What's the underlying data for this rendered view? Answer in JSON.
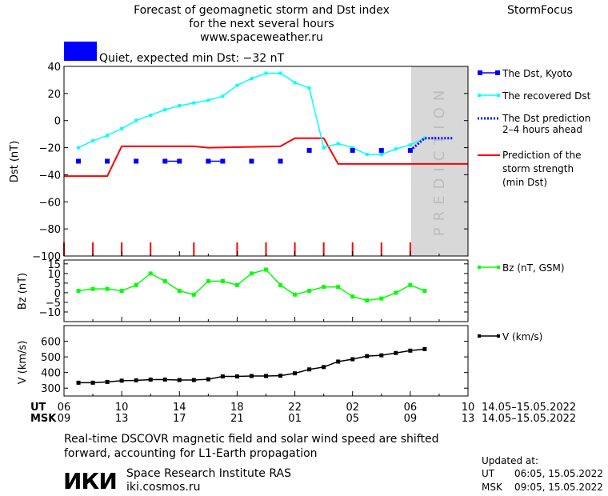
{
  "header": {
    "title_lines": [
      "Forecast of geomagnetic storm and Dst index",
      "for the next several hours",
      "www.spaceweather.ru"
    ],
    "brand": "StormFocus",
    "status_text": "Quiet, expected min Dst: −32 nT",
    "status_color": "#0000ff"
  },
  "colors": {
    "kyoto": "#0000ff",
    "recovered": "#00ffff",
    "prediction_dots": "#0000ff",
    "storm_strength": "#ff0000",
    "bz": "#00ff00",
    "v": "#000000",
    "prediction_zone": "#d8d8d8"
  },
  "legend": {
    "kyoto": "The Dst, Kyoto",
    "recovered": "The recovered Dst",
    "dst_prediction": [
      "The Dst prediction",
      "2–4 hours ahead"
    ],
    "storm_strength": [
      "Prediction of the",
      "storm strength",
      "(min Dst)"
    ],
    "bz": "Bz (nT, GSM)",
    "v": "V (km/s)"
  },
  "prediction_label": "PREDICTION",
  "time_axis": {
    "ut_label": "UT",
    "msk_label": "MSK",
    "ut_ticks": [
      "06",
      "10",
      "14",
      "18",
      "22",
      "02",
      "06",
      "10"
    ],
    "msk_ticks": [
      "09",
      "13",
      "17",
      "21",
      "01",
      "05",
      "09",
      "13"
    ],
    "ut_range": "14.05–15.05.2022",
    "msk_range": "14.05–15.05.2022"
  },
  "chart_data": [
    {
      "type": "line",
      "ylabel": "Dst (nT)",
      "ylim": [
        -100,
        40
      ],
      "yticks": [
        40,
        20,
        0,
        -20,
        -40,
        -60,
        -80,
        -100
      ],
      "xlim": [
        6,
        34
      ],
      "prediction_start": 30,
      "series": [
        {
          "name": "The Dst, Kyoto",
          "style": "square-markers",
          "x": [
            7,
            9,
            11,
            13,
            14,
            16,
            17,
            19,
            21,
            23,
            26,
            28,
            30
          ],
          "y": [
            -30,
            -30,
            -30,
            -30,
            -30,
            -30,
            -30,
            -30,
            -30,
            -22,
            -22,
            -22,
            -22
          ]
        },
        {
          "name": "The recovered Dst",
          "style": "line-small-markers",
          "x": [
            7,
            8,
            9,
            10,
            11,
            12,
            13,
            14,
            15,
            16,
            17,
            18,
            19,
            20,
            21,
            22,
            23,
            24,
            25,
            26,
            27,
            28,
            29,
            30,
            31
          ],
          "y": [
            -20,
            -15,
            -11,
            -6,
            0,
            4,
            8,
            11,
            13,
            15,
            18,
            26,
            31,
            35,
            35,
            28,
            24,
            -20,
            -17,
            -20,
            -25,
            -25,
            -21,
            -18,
            -13
          ]
        },
        {
          "name": "The Dst prediction 2–4 hours ahead",
          "style": "dotted",
          "x": [
            30,
            31,
            32,
            33
          ],
          "y": [
            -22,
            -13,
            -13,
            -13
          ]
        },
        {
          "name": "Prediction of the storm strength (min Dst)",
          "style": "line",
          "x": [
            6,
            9,
            10,
            11,
            15,
            16,
            21,
            22,
            24,
            25,
            34
          ],
          "y": [
            -41,
            -41,
            -19,
            -19,
            -19,
            -20,
            -19,
            -13,
            -13,
            -32,
            -32
          ]
        }
      ],
      "storm_ticks_x": [
        6,
        8,
        10,
        12,
        15,
        18,
        20,
        22,
        24,
        26,
        28,
        30
      ]
    },
    {
      "type": "line",
      "ylabel": "Bz (nT)",
      "ylim": [
        -15,
        17
      ],
      "yticks": [
        15,
        10,
        5,
        0,
        -5,
        -10
      ],
      "xlim": [
        6,
        34
      ],
      "series": [
        {
          "name": "Bz (nT, GSM)",
          "x": [
            7,
            8,
            9,
            10,
            11,
            12,
            13,
            14,
            15,
            16,
            17,
            18,
            19,
            20,
            21,
            22,
            23,
            24,
            25,
            26,
            27,
            28,
            29,
            30,
            31
          ],
          "y": [
            1,
            2,
            2,
            1,
            4,
            10,
            6,
            1,
            -1,
            6,
            6,
            4,
            10,
            12,
            4,
            -1,
            1,
            3,
            3,
            -2,
            -4,
            -3,
            0,
            4,
            1
          ]
        }
      ]
    },
    {
      "type": "line",
      "ylabel": "V (km/s)",
      "ylim": [
        250,
        700
      ],
      "yticks": [
        600,
        500,
        400,
        300
      ],
      "xlim": [
        6,
        34
      ],
      "series": [
        {
          "name": "V (km/s)",
          "x": [
            7,
            8,
            9,
            10,
            11,
            12,
            13,
            14,
            15,
            16,
            17,
            18,
            19,
            20,
            21,
            22,
            23,
            24,
            25,
            26,
            27,
            28,
            29,
            30,
            31
          ],
          "y": [
            335,
            335,
            340,
            348,
            350,
            355,
            355,
            352,
            352,
            357,
            375,
            375,
            378,
            378,
            380,
            395,
            420,
            435,
            470,
            485,
            505,
            510,
            525,
            540,
            550
          ]
        }
      ]
    }
  ],
  "footer": {
    "note_lines": [
      "Real-time DSCOVR magnetic field and solar wind speed are shifted",
      "forward, accounting for L1-Earth propagation"
    ],
    "logo_text": "ИКИ",
    "institute": "Space Research Institute RAS",
    "site": "iki.cosmos.ru",
    "updated_label": "Updated at:",
    "updated_ut_label": "UT",
    "updated_ut": "06:05, 15.05.2022",
    "updated_msk_label": "MSK",
    "updated_msk": "09:05, 15.05.2022"
  }
}
